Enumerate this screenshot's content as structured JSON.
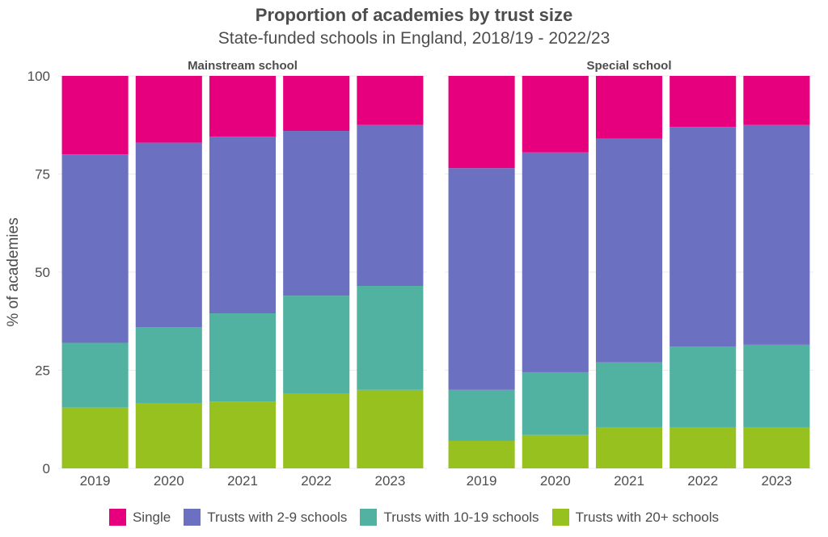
{
  "colors": {
    "Single": "#e6007e",
    "Trusts with 2-9 schools": "#6b70c1",
    "Trusts with 10-19 schools": "#51b2a2",
    "Trusts with 20+ schools": "#97c11f"
  },
  "chart_data": {
    "type": "bar",
    "stacked": true,
    "title": "Proportion of academies by trust size",
    "subtitle": "State-funded schools in England, 2018/19 - 2022/23",
    "ylabel": "% of academies",
    "xlabel": "",
    "ylim": [
      0,
      100
    ],
    "yticks": [
      0,
      25,
      50,
      75,
      100
    ],
    "legend_position": "bottom",
    "stack_order": [
      "Trusts with 20+ schools",
      "Trusts with 10-19 schools",
      "Trusts with 2-9 schools",
      "Single"
    ],
    "facets": [
      {
        "name": "Mainstream school",
        "categories": [
          "2019",
          "2020",
          "2021",
          "2022",
          "2023"
        ],
        "series": [
          {
            "name": "Single",
            "values": [
              20,
              17,
              15.5,
              14,
              12.5
            ]
          },
          {
            "name": "Trusts with 2-9 schools",
            "values": [
              48,
              47,
              45,
              42,
              41
            ]
          },
          {
            "name": "Trusts with 10-19 schools",
            "values": [
              16.5,
              19.5,
              22.5,
              25,
              26.5
            ]
          },
          {
            "name": "Trusts with 20+ schools",
            "values": [
              15.5,
              16.5,
              17,
              19,
              20
            ]
          }
        ]
      },
      {
        "name": "Special school",
        "categories": [
          "2019",
          "2020",
          "2021",
          "2022",
          "2023"
        ],
        "series": [
          {
            "name": "Single",
            "values": [
              23.5,
              19.5,
              16,
              13,
              12.5
            ]
          },
          {
            "name": "Trusts with 2-9 schools",
            "values": [
              56.5,
              56,
              57,
              56,
              56
            ]
          },
          {
            "name": "Trusts with 10-19 schools",
            "values": [
              13,
              16,
              16.5,
              20.5,
              21
            ]
          },
          {
            "name": "Trusts with 20+ schools",
            "values": [
              7,
              8.5,
              10.5,
              10.5,
              10.5
            ]
          }
        ]
      }
    ],
    "legend": [
      "Single",
      "Trusts with 2-9 schools",
      "Trusts with 10-19 schools",
      "Trusts with 20+ schools"
    ]
  }
}
